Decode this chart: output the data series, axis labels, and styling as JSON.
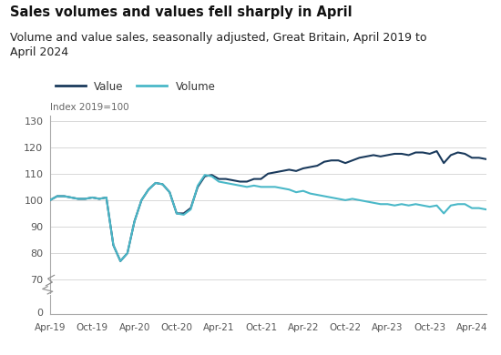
{
  "title": "Sales volumes and values fell sharply in April",
  "subtitle_line1": "Volume and value sales, seasonally adjusted, Great Britain, April 2019 to",
  "subtitle_line2": "April 2024",
  "ylabel": "Index 2019=100",
  "bg_color": "#ffffff",
  "plot_bg_color": "#ffffff",
  "grid_color": "#d8d8d8",
  "value_color": "#1a3a5c",
  "volume_color": "#4ab8c8",
  "xtick_labels": [
    "Apr-19",
    "Oct-19",
    "Apr-20",
    "Oct-20",
    "Apr-21",
    "Oct-21",
    "Apr-22",
    "Oct-22",
    "Apr-23",
    "Oct-23",
    "Apr-24"
  ],
  "yticks_main": [
    70,
    80,
    90,
    100,
    110,
    120,
    130
  ],
  "value_data": [
    100.0,
    101.5,
    101.5,
    101.0,
    100.5,
    100.5,
    101.0,
    100.5,
    101.0,
    83.0,
    77.0,
    80.0,
    92.0,
    100.0,
    104.0,
    106.5,
    106.0,
    103.0,
    95.0,
    95.0,
    97.0,
    105.0,
    109.0,
    109.5,
    108.0,
    108.0,
    107.5,
    107.0,
    107.0,
    108.0,
    108.0,
    110.0,
    110.5,
    111.0,
    111.5,
    111.0,
    112.0,
    112.5,
    113.0,
    114.5,
    115.0,
    115.0,
    114.0,
    115.0,
    116.0,
    116.5,
    117.0,
    116.5,
    117.0,
    117.5,
    117.5,
    117.0,
    118.0,
    118.0,
    117.5,
    118.5,
    114.0,
    117.0,
    118.0,
    117.5,
    116.0,
    116.0,
    115.5
  ],
  "volume_data": [
    100.0,
    101.5,
    101.5,
    101.0,
    100.5,
    100.5,
    101.0,
    100.5,
    101.0,
    83.0,
    77.0,
    80.0,
    92.0,
    100.0,
    104.0,
    106.5,
    106.0,
    103.0,
    95.0,
    94.5,
    96.5,
    105.5,
    109.5,
    109.0,
    107.0,
    106.5,
    106.0,
    105.5,
    105.0,
    105.5,
    105.0,
    105.0,
    105.0,
    104.5,
    104.0,
    103.0,
    103.5,
    102.5,
    102.0,
    101.5,
    101.0,
    100.5,
    100.0,
    100.5,
    100.0,
    99.5,
    99.0,
    98.5,
    98.5,
    98.0,
    98.5,
    98.0,
    98.5,
    98.0,
    97.5,
    98.0,
    95.0,
    98.0,
    98.5,
    98.5,
    97.0,
    97.0,
    96.5
  ]
}
